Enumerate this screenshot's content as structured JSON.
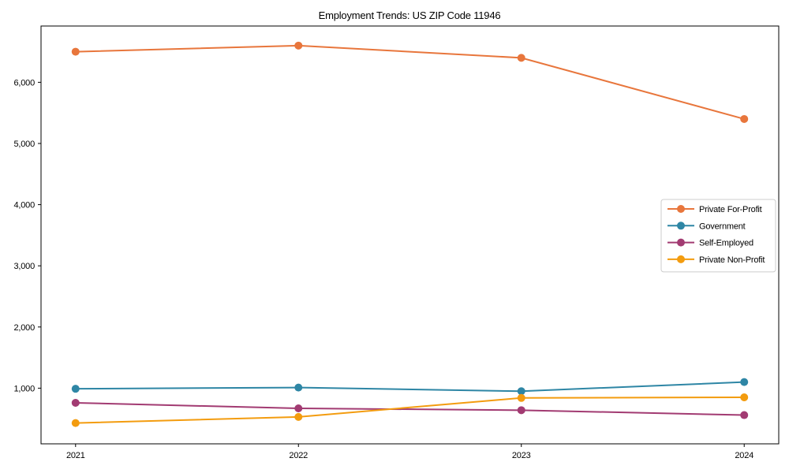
{
  "title": "Employment Trends: US ZIP Code 11946",
  "chart_data": {
    "type": "line",
    "title": "Employment Trends: US ZIP Code 11946",
    "xlabel": "",
    "ylabel": "",
    "x": [
      2021,
      2022,
      2023,
      2024
    ],
    "xtick_labels": [
      "2021",
      "2022",
      "2023",
      "2024"
    ],
    "yticks": [
      1000,
      2000,
      3000,
      4000,
      5000,
      6000
    ],
    "ytick_labels": [
      "1,000",
      "2,000",
      "3,000",
      "4,000",
      "5,000",
      "6,000"
    ],
    "xlim": [
      2020.845,
      2024.155
    ],
    "ylim": [
      90,
      6920
    ],
    "grid": false,
    "legend_position": "center right",
    "series": [
      {
        "name": "Private For-Profit",
        "color": "#e8763c",
        "values": [
          6500,
          6600,
          6400,
          5400
        ]
      },
      {
        "name": "Government",
        "color": "#2e86a5",
        "values": [
          990,
          1010,
          950,
          1100
        ]
      },
      {
        "name": "Self-Employed",
        "color": "#a23b72",
        "values": [
          760,
          670,
          640,
          560
        ]
      },
      {
        "name": "Private Non-Profit",
        "color": "#f39c0f",
        "values": [
          430,
          530,
          840,
          850
        ]
      }
    ],
    "colors": {
      "spine": "#000000",
      "tick": "#000000",
      "text": "#000000",
      "legend_border": "#cccccc",
      "legend_bg": "#ffffff"
    }
  }
}
